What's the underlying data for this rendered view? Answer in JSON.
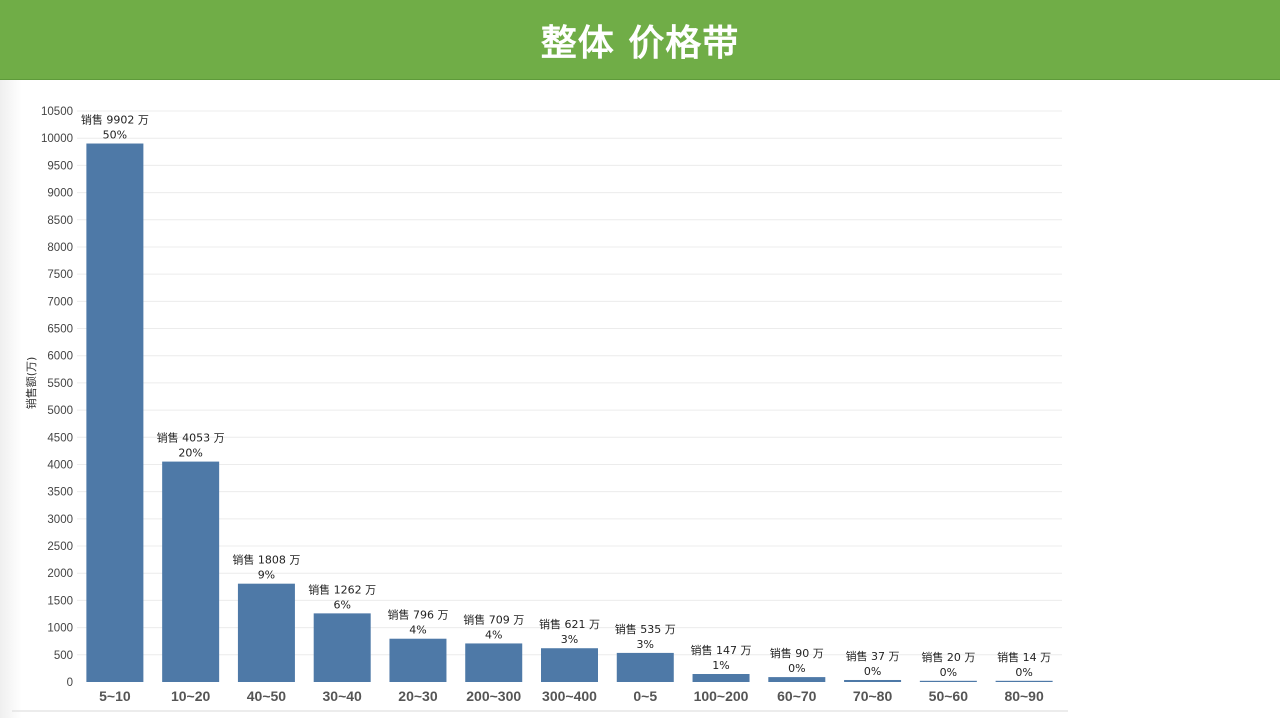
{
  "header": {
    "title": "整体 价格带"
  },
  "chart_data": {
    "type": "bar",
    "title": "整体 价格带",
    "xlabel": "",
    "ylabel": "销售额(万)",
    "ylim": [
      0,
      10500
    ],
    "yticks": [
      0,
      500,
      1000,
      1500,
      2000,
      2500,
      3000,
      3500,
      4000,
      4500,
      5000,
      5500,
      6000,
      6500,
      7000,
      7500,
      8000,
      8500,
      9000,
      9500,
      10000,
      10500
    ],
    "grid": true,
    "color": "#4e79a7",
    "categories": [
      "5~10",
      "10~20",
      "40~50",
      "30~40",
      "20~30",
      "200~300",
      "300~400",
      "0~5",
      "100~200",
      "60~70",
      "70~80",
      "50~60",
      "80~90"
    ],
    "values": [
      9902,
      4053,
      1808,
      1262,
      796,
      709,
      621,
      535,
      147,
      90,
      37,
      20,
      14
    ],
    "value_labels": [
      "销售 9902 万",
      "销售 4053 万",
      "销售 1808 万",
      "销售 1262 万",
      "销售 796 万",
      "销售 709 万",
      "销售 621 万",
      "销售 535 万",
      "销售 147 万",
      "销售 90 万",
      "销售 37 万",
      "销售 20 万",
      "销售 14 万"
    ],
    "percent_labels": [
      "50%",
      "20%",
      "9%",
      "6%",
      "4%",
      "4%",
      "3%",
      "3%",
      "1%",
      "0%",
      "0%",
      "0%",
      "0%"
    ]
  }
}
